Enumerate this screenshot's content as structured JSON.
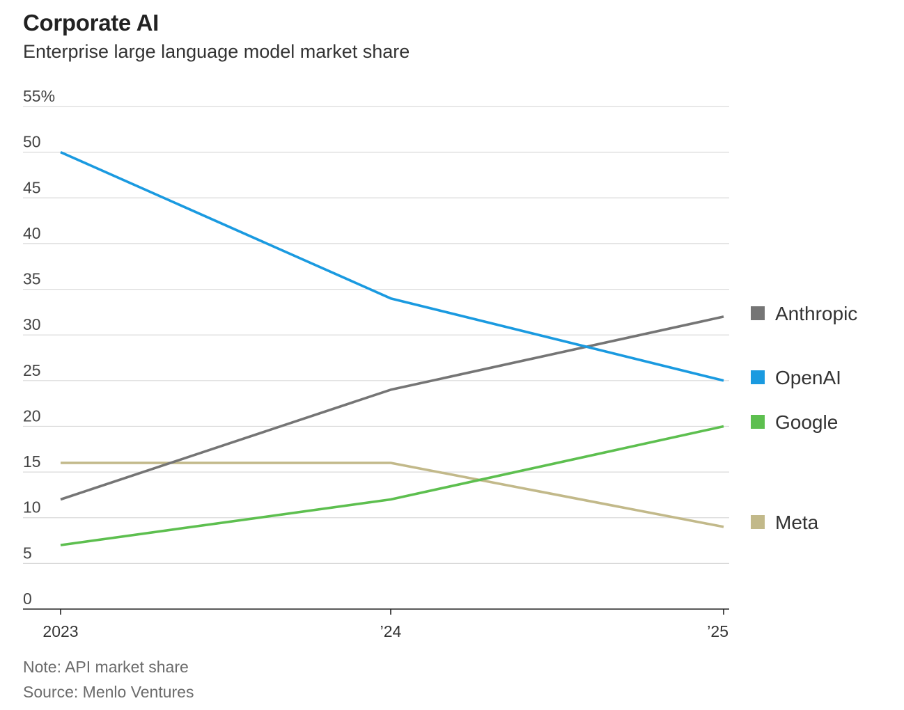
{
  "title": "Corporate AI",
  "subtitle": "Enterprise large language model market share",
  "note": "Note: API market share",
  "source": "Source: Menlo Ventures",
  "chart_data": {
    "type": "line",
    "title": "Corporate AI",
    "subtitle": "Enterprise large language model market share",
    "xlabel": "",
    "ylabel": "",
    "x": [
      2023,
      2024,
      2025
    ],
    "x_tick_labels": [
      "2023",
      "’24",
      "’25"
    ],
    "ylim": [
      0,
      55
    ],
    "y_ticks": [
      0,
      5,
      10,
      15,
      20,
      25,
      30,
      35,
      40,
      45,
      50,
      55
    ],
    "y_tick_labels": [
      "0",
      "5",
      "10",
      "15",
      "20",
      "25",
      "30",
      "35",
      "40",
      "45",
      "50",
      "55%"
    ],
    "grid": true,
    "legend_position": "right",
    "series": [
      {
        "name": "Anthropic",
        "color": "#757575",
        "values": [
          12,
          24,
          32
        ]
      },
      {
        "name": "OpenAI",
        "color": "#1a9ae0",
        "values": [
          50,
          34,
          25
        ]
      },
      {
        "name": "Google",
        "color": "#5dbf4f",
        "values": [
          7,
          12,
          20
        ]
      },
      {
        "name": "Meta",
        "color": "#c2b98a",
        "values": [
          16,
          16,
          9
        ]
      }
    ]
  }
}
